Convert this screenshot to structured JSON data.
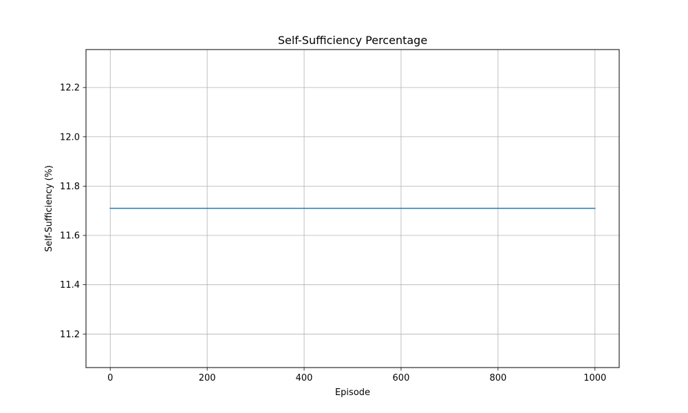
{
  "chart_data": {
    "type": "line",
    "title": "Self-Sufficiency Percentage",
    "xlabel": "Episode",
    "ylabel": "Self-Sufficiency (%)",
    "xlim": [
      -50,
      1050
    ],
    "ylim": [
      11.064,
      12.354
    ],
    "x_ticks": [
      0,
      200,
      400,
      600,
      800,
      1000
    ],
    "y_ticks": [
      11.2,
      11.4,
      11.6,
      11.8,
      12.0,
      12.2
    ],
    "x_tick_labels": [
      "0",
      "200",
      "400",
      "600",
      "800",
      "1000"
    ],
    "y_tick_labels": [
      "11.2",
      "11.4",
      "11.6",
      "11.8",
      "12.0",
      "12.2"
    ],
    "grid": true,
    "series": [
      {
        "color": "#1f77b4",
        "x": [
          0,
          1000
        ],
        "y": [
          11.71,
          11.71
        ]
      }
    ]
  },
  "colors": {
    "background": "#ffffff",
    "grid": "#b0b0b0",
    "axes": "#000000"
  }
}
